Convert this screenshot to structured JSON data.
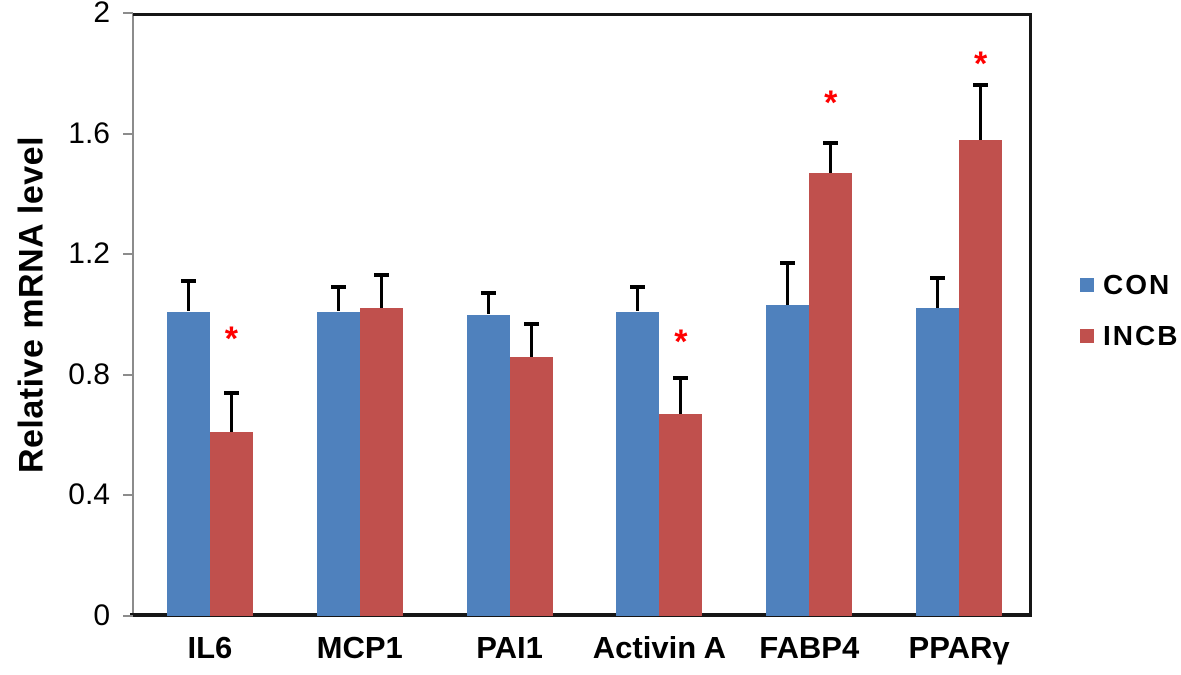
{
  "chart_data": {
    "type": "bar",
    "title": "",
    "xlabel": "",
    "ylabel": "Relative mRNA level",
    "ylim": [
      0,
      2
    ],
    "yticks": [
      0,
      0.4,
      0.8,
      1.2,
      1.6,
      2
    ],
    "ytick_labels": [
      "0",
      "0.4",
      "0.8",
      "1.2",
      "1.6",
      "2"
    ],
    "categories": [
      "IL6",
      "MCP1",
      "PAI1",
      "Activin A",
      "FABP4",
      "PPARγ"
    ],
    "series": [
      {
        "name": "CON",
        "color": "#4f81bd",
        "values": [
          1.01,
          1.01,
          1.0,
          1.01,
          1.03,
          1.02
        ],
        "errors": [
          0.1,
          0.08,
          0.07,
          0.08,
          0.14,
          0.1
        ]
      },
      {
        "name": "INCB",
        "color": "#c0504d",
        "values": [
          0.61,
          1.02,
          0.86,
          0.67,
          1.47,
          1.58
        ],
        "errors": [
          0.13,
          0.11,
          0.11,
          0.12,
          0.1,
          0.18
        ]
      }
    ],
    "error_bars": "upper-only",
    "grid": false,
    "legend_position": "right",
    "annotations": [
      {
        "text": "*",
        "color": "#ff0000",
        "category": "IL6",
        "series": "INCB",
        "y": 0.93
      },
      {
        "text": "*",
        "color": "#ff0000",
        "category": "Activin A",
        "series": "INCB",
        "y": 0.92
      },
      {
        "text": "*",
        "color": "#ff0000",
        "category": "FABP4",
        "series": "INCB",
        "y": 1.71
      },
      {
        "text": "*",
        "color": "#ff0000",
        "category": "PPARγ",
        "series": "INCB",
        "y": 1.84
      }
    ]
  },
  "colors": {
    "axis_line": "#8c8c8c",
    "plot_border": "#161616",
    "text": "#000000",
    "background": "#ffffff",
    "significance": "#ff0000"
  }
}
